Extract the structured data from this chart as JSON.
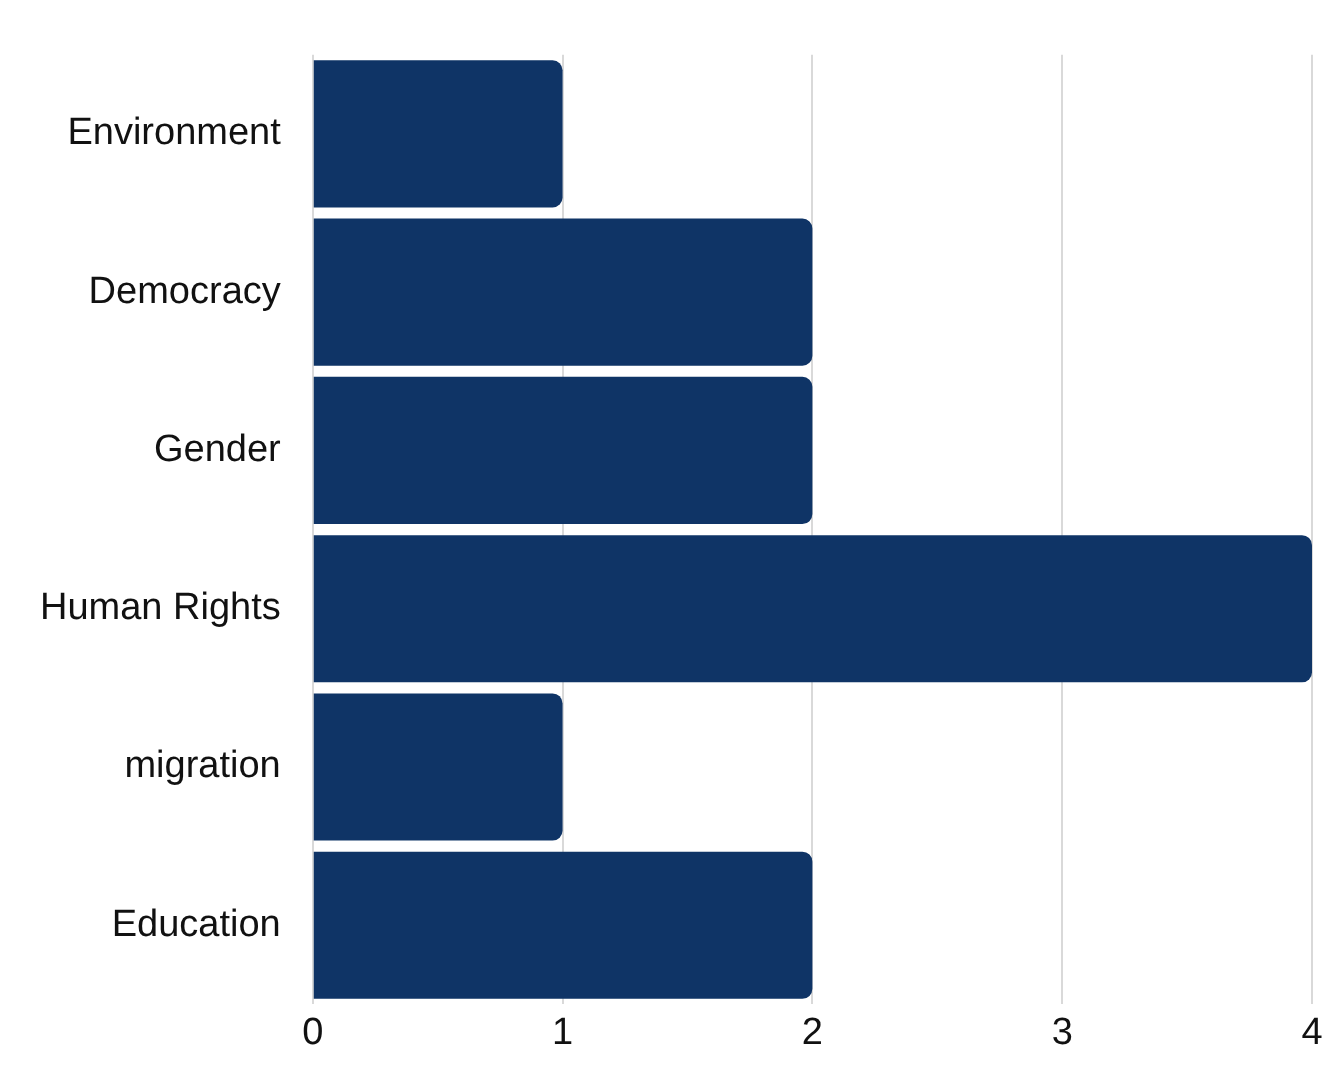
{
  "chart_data": {
    "type": "bar",
    "orientation": "horizontal",
    "categories": [
      "Environment",
      "Democracy",
      "Gender",
      "Human Rights",
      "migration",
      "Education"
    ],
    "values": [
      1,
      2,
      2,
      4,
      1,
      2
    ],
    "color": "#0f3466",
    "xlim": [
      0,
      4
    ],
    "xticks": [
      0,
      1,
      2,
      3,
      4
    ],
    "grid": "x",
    "legend": false
  }
}
